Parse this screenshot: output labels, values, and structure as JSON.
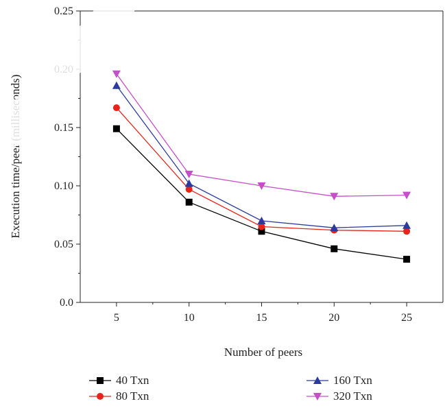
{
  "chart_data": {
    "type": "line",
    "title": "",
    "xlabel": "Number of peers",
    "ylabel": "Execution time/peer (milliseconds)",
    "x": [
      5,
      10,
      15,
      20,
      25
    ],
    "xlim": [
      2.5,
      27.5
    ],
    "ylim": [
      0,
      0.25
    ],
    "x_ticks": [
      "5",
      "10",
      "15",
      "20",
      "25"
    ],
    "y_ticks": [
      "0.0",
      "0.05",
      "0.10",
      "0.15",
      "0.20",
      "0.25"
    ],
    "y_tick_values": [
      0,
      0.05,
      0.1,
      0.15,
      0.2,
      0.25
    ],
    "grid": false,
    "legend_position": "bottom",
    "series": [
      {
        "name": "40 Txn",
        "color": "#000000",
        "marker": "square",
        "values": [
          0.149,
          0.086,
          0.061,
          0.046,
          0.037
        ]
      },
      {
        "name": "80 Txn",
        "color": "#e8231a",
        "marker": "circle",
        "values": [
          0.167,
          0.097,
          0.065,
          0.062,
          0.061
        ]
      },
      {
        "name": "160 Txn",
        "color": "#2b3a9c",
        "marker": "triangle-up",
        "values": [
          0.186,
          0.102,
          0.07,
          0.064,
          0.066
        ]
      },
      {
        "name": "320 Txn",
        "color": "#c54fc8",
        "marker": "triangle-down",
        "values": [
          0.196,
          0.11,
          0.1,
          0.091,
          0.092
        ]
      }
    ]
  }
}
